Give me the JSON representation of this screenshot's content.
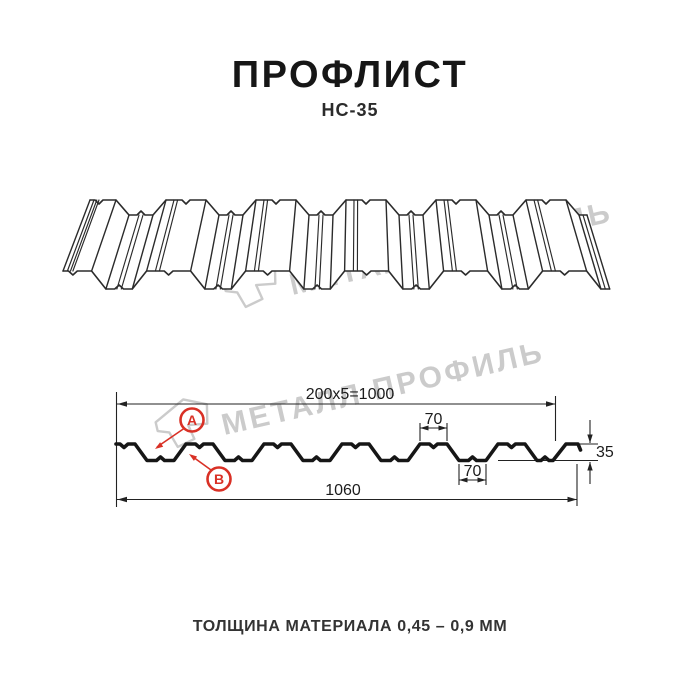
{
  "title": "ПРОФЛИСТ",
  "subtitle": "НС-35",
  "watermark": {
    "text": "МЕТАЛЛ ПРОФИЛЬ"
  },
  "section": {
    "dim_working_width": "200x5=1000",
    "dim_top_flange": "70",
    "dim_bottom_flange": "70",
    "dim_height": "35",
    "dim_overall_width": "1060",
    "point_a": "А",
    "point_b": "В"
  },
  "footer": "ТОЛЩИНА МАТЕРИАЛА 0,45 – 0,9 ММ",
  "colors": {
    "accent_red": "#d93025",
    "line": "#1a1a1a",
    "watermark": "#cbcbcb"
  }
}
